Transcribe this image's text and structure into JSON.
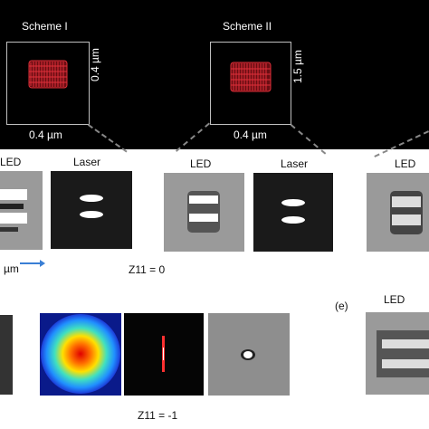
{
  "schemes": [
    {
      "title": "Scheme I",
      "height_label": "0.4 µm",
      "width_label": "0.4 µm"
    },
    {
      "title": "Scheme II",
      "height_label": "1.5 µm",
      "width_label": "0.4 µm"
    }
  ],
  "row1": {
    "labels": [
      "LED",
      "Laser",
      "LED",
      "Laser",
      "LED"
    ],
    "scale_label": "µm",
    "caption": "Z11 = 0"
  },
  "row2": {
    "panel_tag": "(e)",
    "led_label": "LED",
    "caption": "Z11 = -1"
  },
  "colors": {
    "background_top": "#000000",
    "structure": "#e0303a",
    "arrow": "#3a7fd5"
  }
}
